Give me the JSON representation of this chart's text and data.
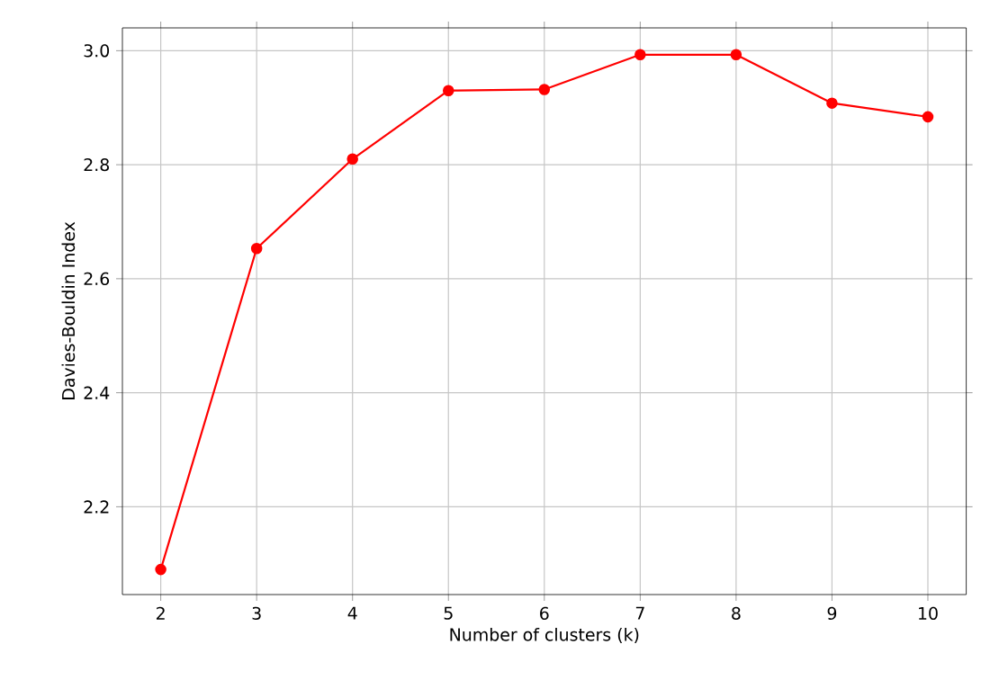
{
  "chart_data": {
    "type": "line",
    "xlabel": "Number of clusters (k)",
    "ylabel": "Davies-Bouldin Index",
    "x": [
      2,
      3,
      4,
      5,
      6,
      7,
      8,
      9,
      10
    ],
    "series": [
      {
        "color": "#ff0000",
        "values": [
          2.09,
          2.653,
          2.81,
          2.93,
          2.932,
          2.993,
          2.993,
          2.908,
          2.884
        ]
      }
    ],
    "xlim": [
      1.6,
      10.4
    ],
    "xticks": [
      2,
      3,
      4,
      5,
      6,
      7,
      8,
      9,
      10
    ],
    "ylim": [
      2.046,
      3.04
    ],
    "yticks": [
      2.2,
      2.4,
      2.6,
      2.8,
      {
        "value": 3,
        "label": "3.0"
      }
    ],
    "grid": true,
    "marker": "circle",
    "line_style": "solid"
  }
}
